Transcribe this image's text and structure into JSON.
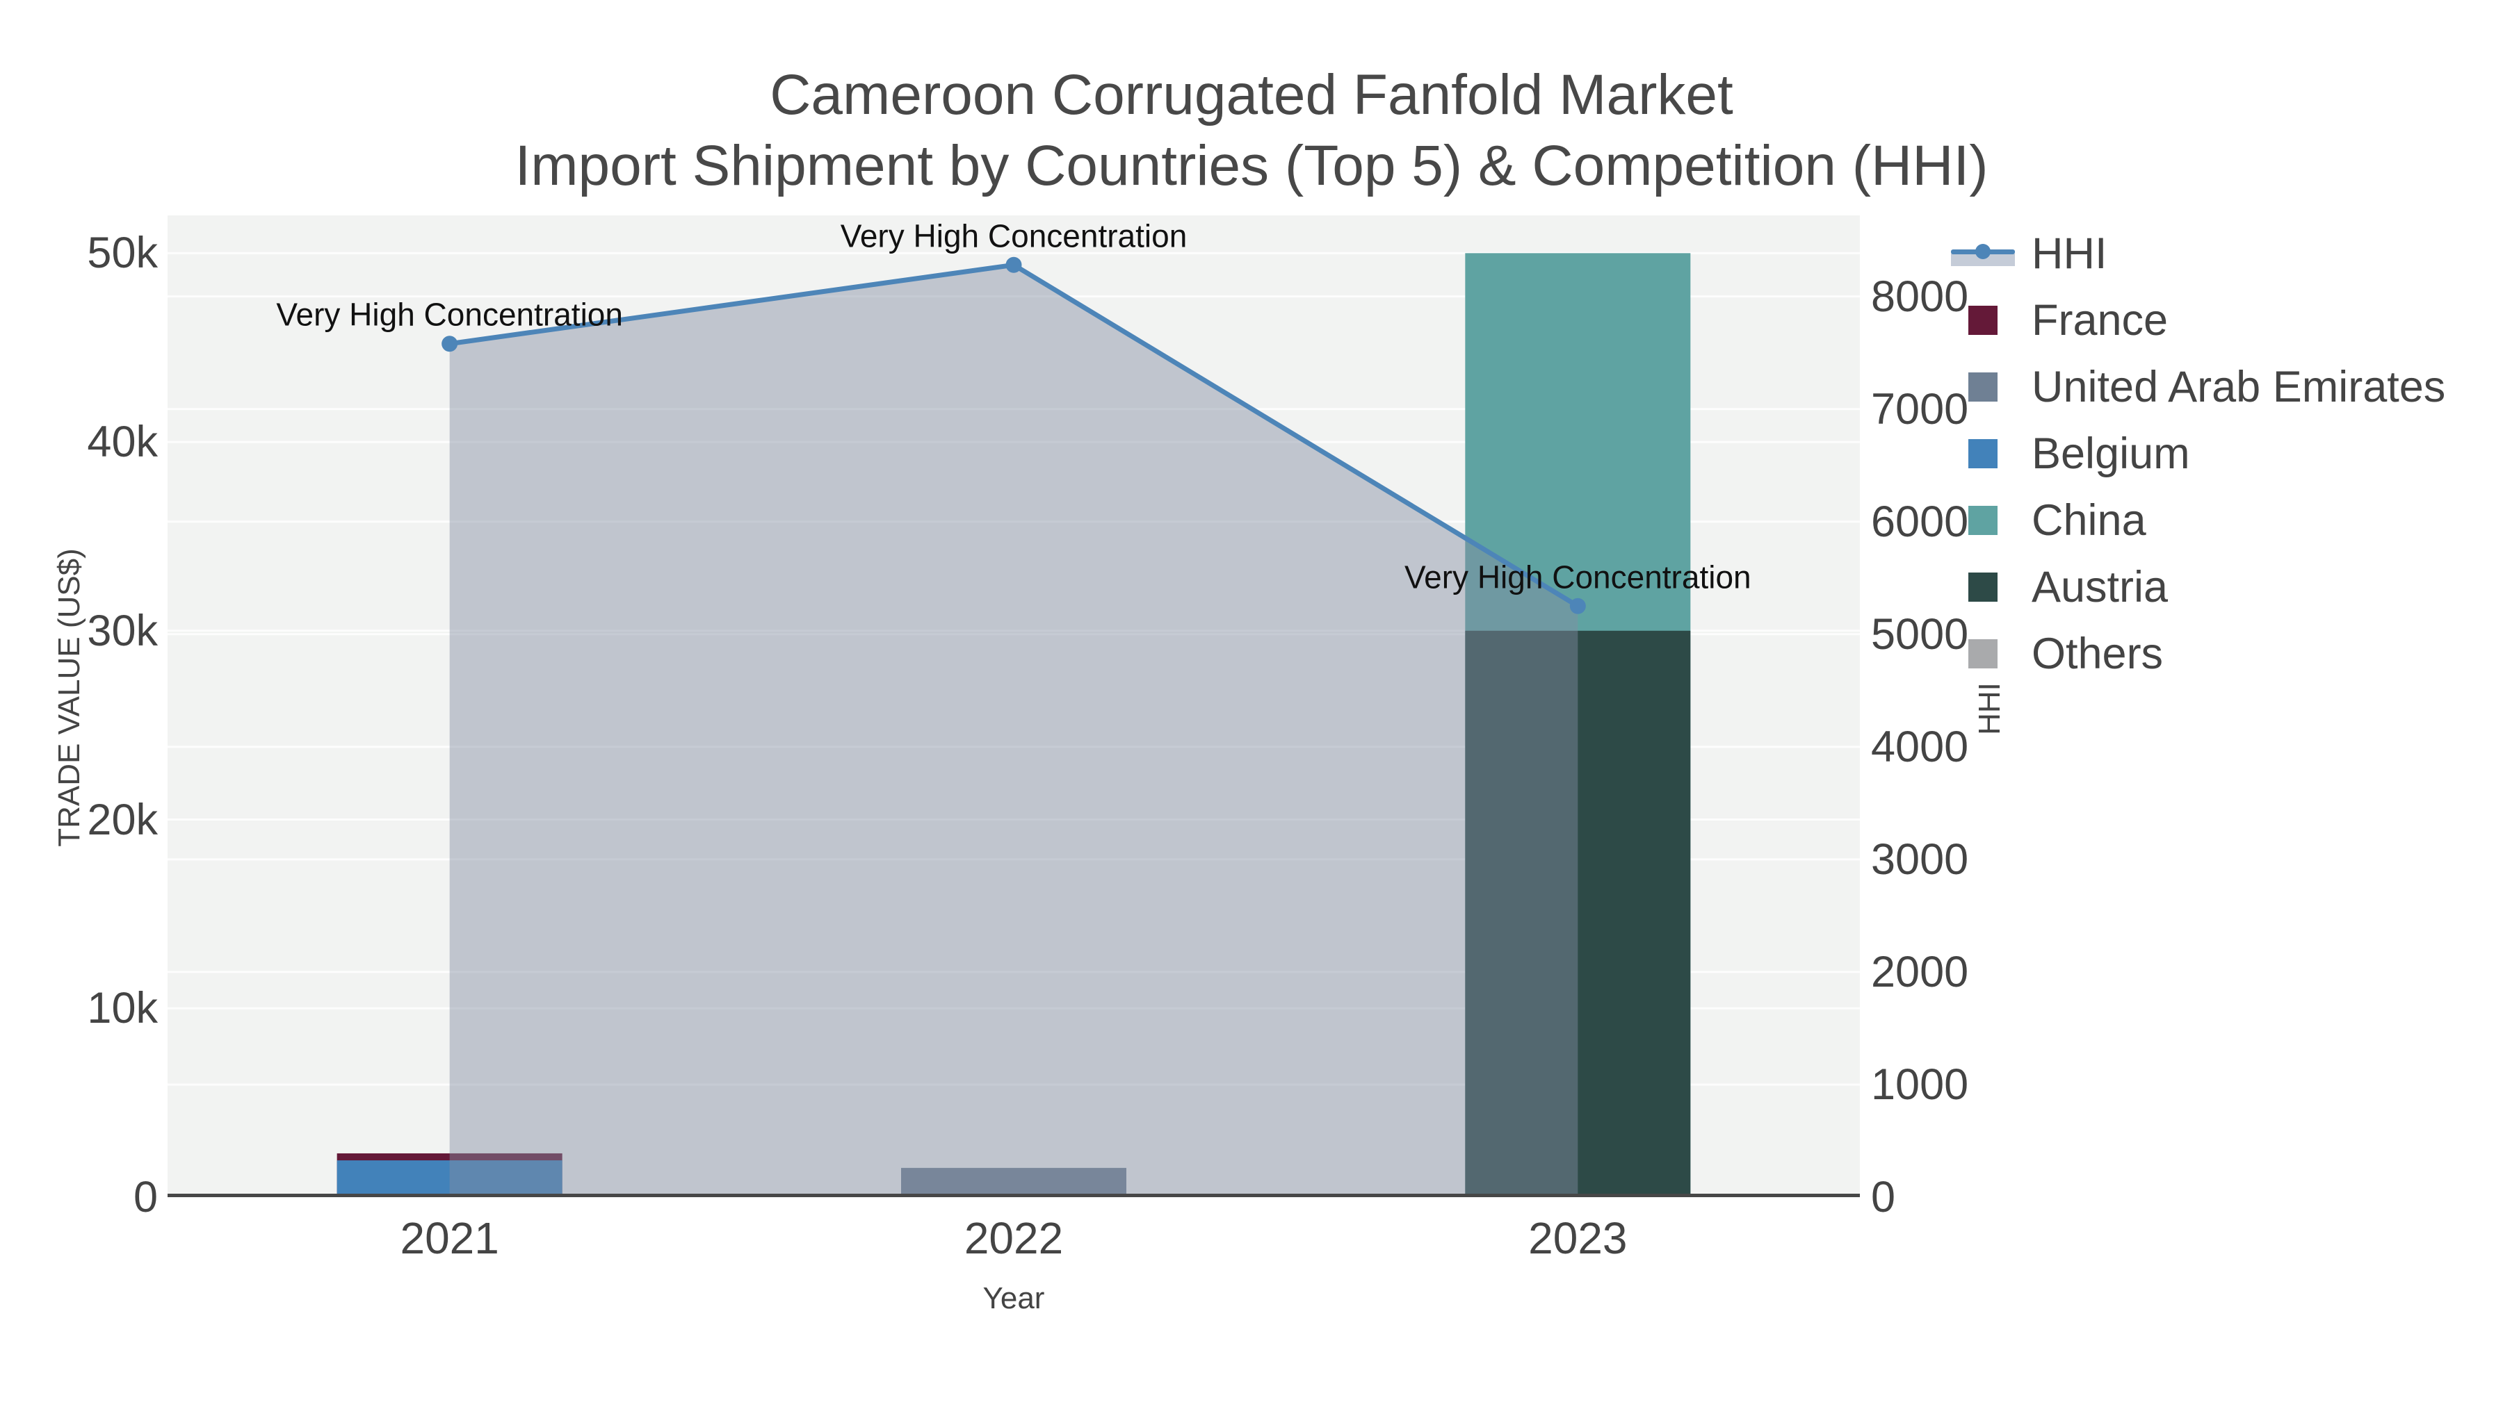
{
  "title": {
    "line1": "Cameroon Corrugated Fanfold Market",
    "line2": "Import Shipment by Countries (Top 5) & Competition (HHI)"
  },
  "axes": {
    "x": {
      "title": "Year",
      "categories": [
        "2021",
        "2022",
        "2023"
      ]
    },
    "y_left": {
      "title": "TRADE VALUE (US$)",
      "max": 52000,
      "ticks": [
        {
          "v": 0,
          "label": "0"
        },
        {
          "v": 10000,
          "label": "10k"
        },
        {
          "v": 20000,
          "label": "20k"
        },
        {
          "v": 30000,
          "label": "30k"
        },
        {
          "v": 40000,
          "label": "40k"
        },
        {
          "v": 50000,
          "label": "50k"
        }
      ]
    },
    "y_right": {
      "title": "HHI",
      "max": 8720,
      "ticks": [
        {
          "v": 0,
          "label": "0"
        },
        {
          "v": 1000,
          "label": "1000"
        },
        {
          "v": 2000,
          "label": "2000"
        },
        {
          "v": 3000,
          "label": "3000"
        },
        {
          "v": 4000,
          "label": "4000"
        },
        {
          "v": 5000,
          "label": "5000"
        },
        {
          "v": 6000,
          "label": "6000"
        },
        {
          "v": 7000,
          "label": "7000"
        },
        {
          "v": 8000,
          "label": "8000"
        }
      ]
    }
  },
  "legend": {
    "items": [
      {
        "label": "HHI",
        "type": "line",
        "color": "#4d85b8",
        "band": "#c5ccd8"
      },
      {
        "label": "France",
        "type": "swatch",
        "color": "#641938"
      },
      {
        "label": "United Arab Emirates",
        "type": "swatch",
        "color": "#6f8094"
      },
      {
        "label": "Belgium",
        "type": "swatch",
        "color": "#4282ba"
      },
      {
        "label": "China",
        "type": "swatch",
        "color": "#5fa3a2"
      },
      {
        "label": "Austria",
        "type": "swatch",
        "color": "#2d4a47"
      },
      {
        "label": "Others",
        "type": "swatch",
        "color": "#a9aaac"
      }
    ]
  },
  "chart_data": {
    "type": "combo-bar-line",
    "barmode": "overlay",
    "categories": [
      "2021",
      "2022",
      "2023"
    ],
    "bar_series": [
      {
        "name": "France",
        "color": "#641938",
        "values": [
          2320,
          0,
          0
        ]
      },
      {
        "name": "United Arab Emirates",
        "color": "#6f8094",
        "values": [
          0,
          1550,
          0
        ]
      },
      {
        "name": "Belgium",
        "color": "#4282ba",
        "values": [
          1950,
          0,
          0
        ]
      },
      {
        "name": "China",
        "color": "#5fa3a2",
        "values": [
          0,
          0,
          50000
        ]
      },
      {
        "name": "Austria",
        "color": "#2d4a47",
        "values": [
          0,
          0,
          30000
        ]
      },
      {
        "name": "Others",
        "color": "#a9aaac",
        "values": [
          0,
          170,
          0
        ]
      }
    ],
    "line_series": {
      "name": "HHI",
      "axis": "right",
      "color": "#4d85b8",
      "fill_color": "rgba(130,142,162,0.45)",
      "values": [
        7580,
        8280,
        5250
      ],
      "point_annotations": [
        "Very High Concentration",
        "Very High Concentration",
        "Very High Concentration"
      ]
    },
    "title": "Cameroon Corrugated Fanfold Market Import Shipment by Countries (Top 5) & Competition (HHI)",
    "xlabel": "Year",
    "ylabel_left": "TRADE VALUE (US$)",
    "ylabel_right": "HHI",
    "ylim_left": [
      0,
      52000
    ],
    "ylim_right": [
      0,
      8720
    ],
    "grid": true,
    "legend_position": "right"
  }
}
